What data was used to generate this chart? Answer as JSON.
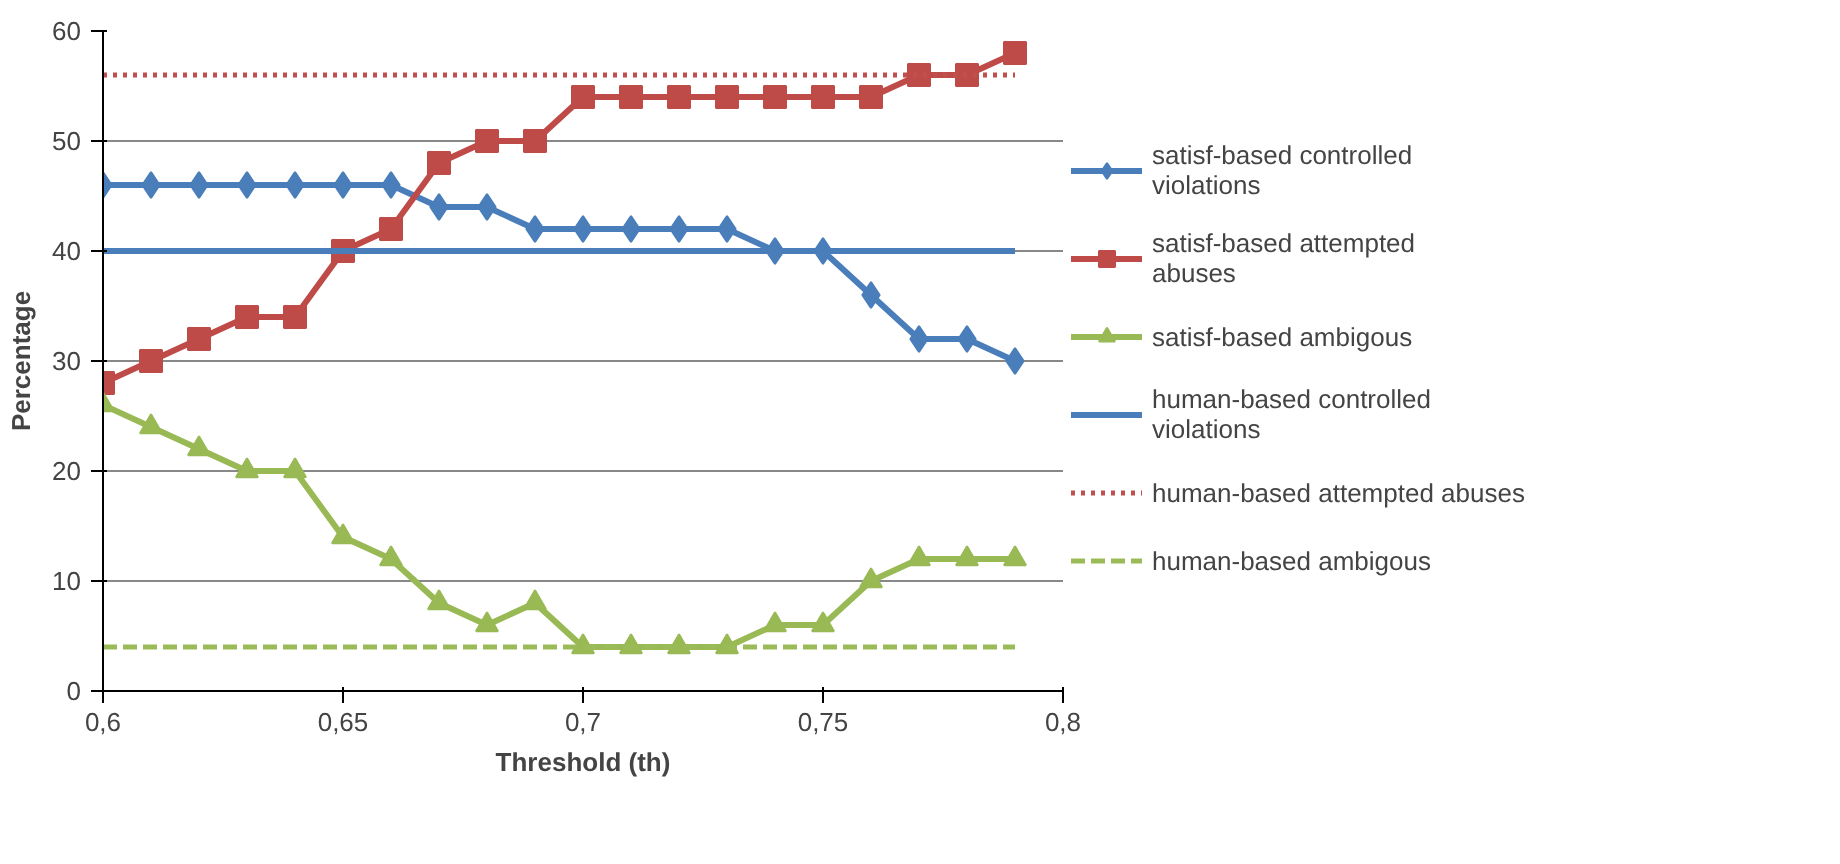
{
  "chart_data": {
    "type": "line",
    "xlabel": "Threshold (th)",
    "ylabel": "Percentage",
    "x": [
      0.6,
      0.61,
      0.62,
      0.63,
      0.64,
      0.65,
      0.66,
      0.67,
      0.68,
      0.69,
      0.7,
      0.71,
      0.72,
      0.73,
      0.74,
      0.75,
      0.76,
      0.77,
      0.78,
      0.79
    ],
    "series": [
      {
        "name": "satisf-based controlled violations",
        "color": "#4a7ebb",
        "marker": "diamond",
        "values": [
          46,
          46,
          46,
          46,
          46,
          46,
          46,
          44,
          44,
          42,
          42,
          42,
          42,
          42,
          40,
          40,
          36,
          32,
          32,
          30
        ]
      },
      {
        "name": "satisf-based attempted abuses",
        "color": "#be4b48",
        "marker": "square",
        "values": [
          28,
          30,
          32,
          34,
          34,
          40,
          42,
          48,
          50,
          50,
          54,
          54,
          54,
          54,
          54,
          54,
          54,
          56,
          56,
          58
        ]
      },
      {
        "name": "satisf-based ambigous",
        "color": "#98b954",
        "marker": "triangle",
        "values": [
          26,
          24,
          22,
          20,
          20,
          14,
          12,
          8,
          6,
          8,
          4,
          4,
          4,
          4,
          6,
          6,
          10,
          12,
          12,
          12
        ]
      },
      {
        "name": "human-based controlled violations",
        "color": "#4a7ebb",
        "line_style": "solid",
        "values": [
          40,
          40,
          40,
          40,
          40,
          40,
          40,
          40,
          40,
          40,
          40,
          40,
          40,
          40,
          40,
          40,
          40,
          40,
          40,
          40
        ]
      },
      {
        "name": "human-based attempted abuses",
        "color": "#c0504d",
        "line_style": "dotted",
        "values": [
          56,
          56,
          56,
          56,
          56,
          56,
          56,
          56,
          56,
          56,
          56,
          56,
          56,
          56,
          56,
          56,
          56,
          56,
          56,
          56
        ]
      },
      {
        "name": "human-based ambigous",
        "color": "#9bbb59",
        "line_style": "dashed",
        "values": [
          4,
          4,
          4,
          4,
          4,
          4,
          4,
          4,
          4,
          4,
          4,
          4,
          4,
          4,
          4,
          4,
          4,
          4,
          4,
          4
        ]
      }
    ],
    "xlim": [
      0.6,
      0.8
    ],
    "xticks": [
      {
        "value": 0.6,
        "label": "0,6"
      },
      {
        "value": 0.65,
        "label": "0,65"
      },
      {
        "value": 0.7,
        "label": "0,7"
      },
      {
        "value": 0.75,
        "label": "0,75"
      },
      {
        "value": 0.8,
        "label": "0,8"
      }
    ],
    "ylim": [
      0,
      60
    ],
    "yticks": [
      0,
      10,
      20,
      30,
      40,
      50,
      60
    ],
    "grid": "y",
    "legend": "right"
  }
}
